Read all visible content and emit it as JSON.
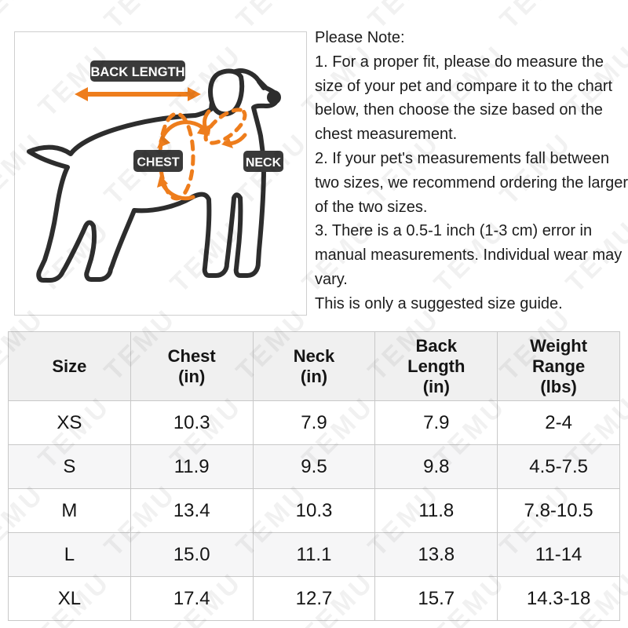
{
  "watermark": {
    "text": "TEMU"
  },
  "diagram": {
    "labels": {
      "back_length": "BACK LENGTH",
      "chest": "CHEST",
      "neck": "NECK"
    },
    "accent_color": "#EE7D1C",
    "label_bg": "#3A3A3A"
  },
  "notes": {
    "title": "Please Note:",
    "items": [
      "1. For a proper fit, please do measure the size of your pet and compare it to the chart below, then choose the size based on the chest measurement.",
      "2. If your pet's measurements fall between two sizes, we recommend ordering the larger of the two sizes.",
      "3. There is a 0.5-1 inch (1-3 cm) error in manual measurements. Individual wear may vary.",
      "This is only a suggested size guide."
    ]
  },
  "size_table": {
    "headers": [
      "Size",
      "Chest\n(in)",
      "Neck\n(in)",
      "Back\nLength\n(in)",
      "Weight\nRange\n(lbs)"
    ],
    "rows": [
      [
        "XS",
        "10.3",
        "7.9",
        "7.9",
        "2-4"
      ],
      [
        "S",
        "11.9",
        "9.5",
        "9.8",
        "4.5-7.5"
      ],
      [
        "M",
        "13.4",
        "10.3",
        "11.8",
        "7.8-10.5"
      ],
      [
        "L",
        "15.0",
        "11.1",
        "13.8",
        "11-14"
      ],
      [
        "XL",
        "17.4",
        "12.7",
        "15.7",
        "14.3-18"
      ]
    ]
  }
}
